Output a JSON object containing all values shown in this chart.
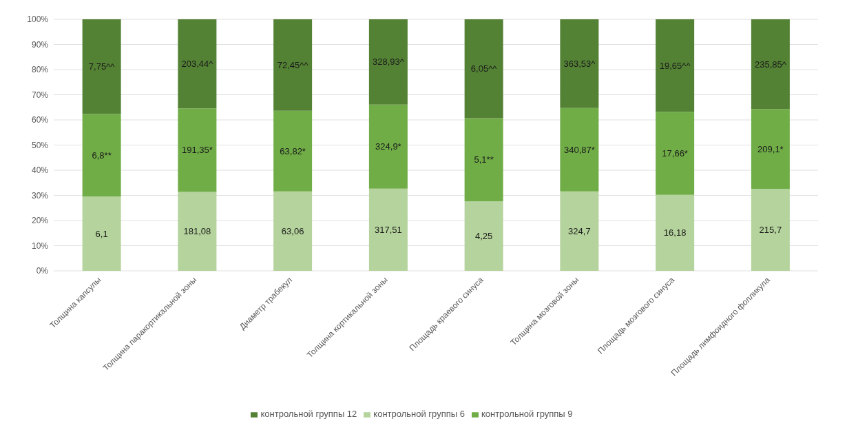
{
  "chart_data": {
    "type": "bar",
    "stacked": true,
    "categories": [
      "Толщина капсулы",
      "Толщина паракортикальной зоны",
      "Диаметр трабекул",
      "Толщина кортикальной зоны",
      "Площадь краевого синуса",
      "Толщина мозговой зоны",
      "Площадь мозгового синуса",
      "Площадь лимфоидного фолликула"
    ],
    "series": [
      {
        "name": "контрольной группы 6",
        "color": "#b5d39c",
        "values": [
          29.5,
          31.4,
          31.6,
          32.7,
          27.6,
          31.6,
          30.2,
          32.6
        ]
      },
      {
        "name": "контрольной группы 9",
        "color": "#70ad47",
        "values": [
          32.9,
          33.2,
          32.0,
          33.4,
          33.1,
          33.1,
          33.0,
          31.7
        ]
      },
      {
        "name": "контрольной группы 12",
        "color": "#548235",
        "values": [
          37.6,
          35.4,
          36.4,
          33.9,
          39.3,
          35.3,
          36.8,
          35.7
        ]
      }
    ],
    "annotations": [
      "6,1",
      "6,8**",
      "7,75^^",
      "181,08",
      "191,35*",
      "203,44^",
      "63,06",
      "63,82*",
      "72,45^^",
      "317,51",
      "324,9*",
      "328,93^",
      "4,25",
      "5,1**",
      "6,05^^",
      "324,7",
      "340,87*",
      "363,53^",
      "16,18",
      "17,66*",
      "19,65^^",
      "215,7",
      "209,1*",
      "235,85^"
    ],
    "ylim": [
      0,
      100
    ],
    "yticks": [
      {
        "value": 0,
        "label": "0%"
      },
      {
        "value": 10,
        "label": "10%"
      },
      {
        "value": 20,
        "label": "20%"
      },
      {
        "value": 30,
        "label": "30%"
      },
      {
        "value": 40,
        "label": "40%"
      },
      {
        "value": 50,
        "label": "50%"
      },
      {
        "value": 60,
        "label": "60%"
      },
      {
        "value": 70,
        "label": "70%"
      },
      {
        "value": 80,
        "label": "80%"
      },
      {
        "value": 90,
        "label": "90%"
      },
      {
        "value": 100,
        "label": "100%"
      }
    ],
    "grid": "y",
    "legend": "bottom"
  }
}
